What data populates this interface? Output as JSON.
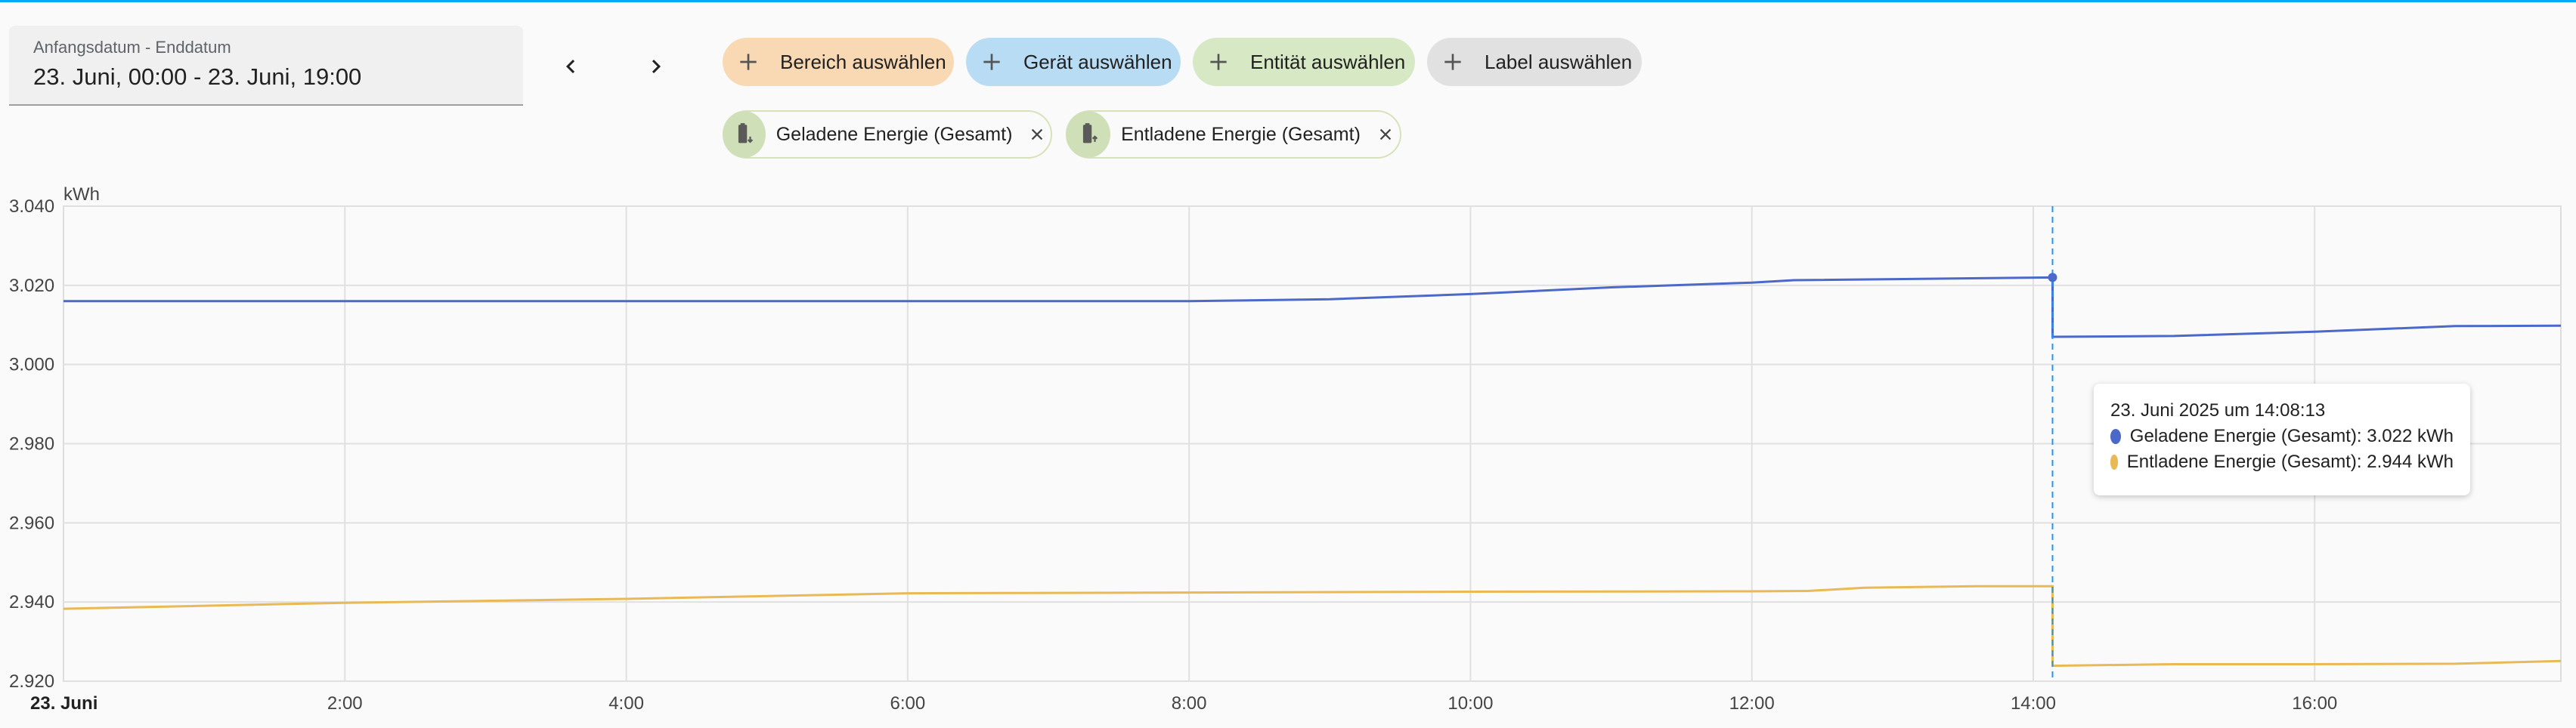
{
  "date_picker": {
    "label": "Anfangsdatum - Enddatum",
    "value": "23. Juni, 00:00 - 23. Juni, 19:00"
  },
  "nav": {
    "prev_icon": "chevron-left-icon",
    "next_icon": "chevron-right-icon"
  },
  "target_chips": [
    {
      "label": "Bereich auswählen",
      "color": "#f8d9b3"
    },
    {
      "label": "Gerät auswählen",
      "color": "#b8dcf3"
    },
    {
      "label": "Entität auswählen",
      "color": "#d6e8c4"
    },
    {
      "label": "Label auswählen",
      "color": "#e1e1e1"
    }
  ],
  "entities": [
    {
      "label": "Geladene Energie (Gesamt)",
      "icon": "battery-charging-icon"
    },
    {
      "label": "Entladene Energie (Gesamt)",
      "icon": "battery-discharging-icon"
    }
  ],
  "tooltip": {
    "title": "23. Juni 2025 um 14:08:13",
    "rows": [
      {
        "text": "Geladene Energie (Gesamt): 3.022 kWh",
        "color": "#4c68c9"
      },
      {
        "text": "Entladene Energie (Gesamt): 2.944 kWh",
        "color": "#e9b955"
      }
    ]
  },
  "chart_data": {
    "type": "line",
    "ylabel": "kWh",
    "ylim": [
      2.92,
      3.04
    ],
    "xlim": [
      0,
      17.75
    ],
    "y_ticks": [
      {
        "value": 3.04,
        "label": "3.040"
      },
      {
        "value": 3.02,
        "label": "3.020"
      },
      {
        "value": 3.0,
        "label": "3.000"
      },
      {
        "value": 2.98,
        "label": "2.980"
      },
      {
        "value": 2.96,
        "label": "2.960"
      },
      {
        "value": 2.94,
        "label": "2.940"
      },
      {
        "value": 2.92,
        "label": "2.920"
      }
    ],
    "x_ticks": [
      {
        "value": 0,
        "label": "23. Juni",
        "bold": true
      },
      {
        "value": 2,
        "label": "2:00"
      },
      {
        "value": 4,
        "label": "4:00"
      },
      {
        "value": 6,
        "label": "6:00"
      },
      {
        "value": 8,
        "label": "8:00"
      },
      {
        "value": 10,
        "label": "10:00"
      },
      {
        "value": 12,
        "label": "12:00"
      },
      {
        "value": 14,
        "label": "14:00"
      },
      {
        "value": 16,
        "label": "16:00"
      }
    ],
    "cursor_x": 14.137,
    "grid": true,
    "series": [
      {
        "name": "Geladene Energie (Gesamt)",
        "color": "#4c68c9",
        "points": [
          [
            0,
            3.016
          ],
          [
            8.0,
            3.016
          ],
          [
            9.0,
            3.0165
          ],
          [
            10.0,
            3.0178
          ],
          [
            11.0,
            3.0195
          ],
          [
            12.0,
            3.0207
          ],
          [
            12.3,
            3.0213
          ],
          [
            14.137,
            3.022
          ],
          [
            14.137,
            3.007
          ],
          [
            15.0,
            3.0072
          ],
          [
            16.0,
            3.0083
          ],
          [
            17.0,
            3.0097
          ],
          [
            17.75,
            3.0098
          ]
        ]
      },
      {
        "name": "Entladene Energie (Gesamt)",
        "color": "#e9b955",
        "points": [
          [
            0,
            2.9383
          ],
          [
            2.0,
            2.9398
          ],
          [
            4.0,
            2.9408
          ],
          [
            6.0,
            2.9422
          ],
          [
            8.0,
            2.9424
          ],
          [
            10.0,
            2.9426
          ],
          [
            12.0,
            2.9427
          ],
          [
            12.4,
            2.9428
          ],
          [
            12.8,
            2.9436
          ],
          [
            13.6,
            2.944
          ],
          [
            14.137,
            2.944
          ],
          [
            14.137,
            2.9239
          ],
          [
            15.0,
            2.9243
          ],
          [
            16.0,
            2.9243
          ],
          [
            17.0,
            2.9244
          ],
          [
            17.75,
            2.9251
          ]
        ]
      }
    ]
  }
}
